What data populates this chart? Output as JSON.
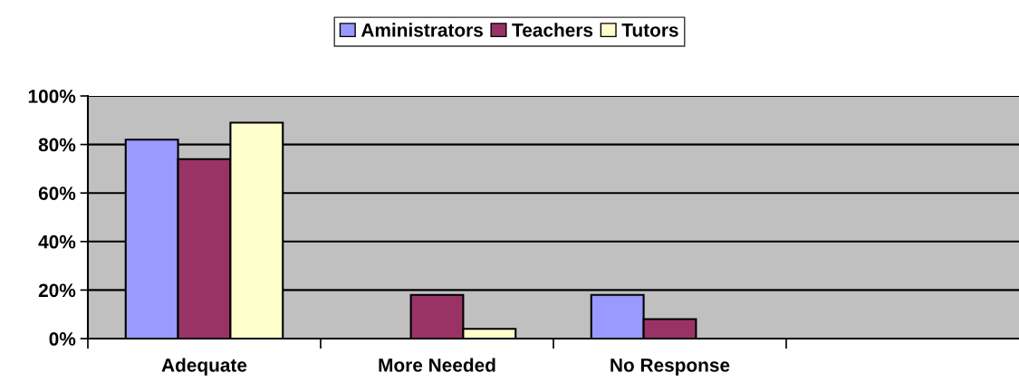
{
  "chart_data": {
    "type": "bar",
    "categories": [
      "Adequate",
      "More Needed",
      "No Response",
      null
    ],
    "series": [
      {
        "name": "Aministrators",
        "color": "#9999ff",
        "values": [
          82,
          null,
          18,
          null
        ]
      },
      {
        "name": "Teachers",
        "color": "#993366",
        "values": [
          74,
          18,
          8,
          null
        ]
      },
      {
        "name": "Tutors",
        "color": "#ffffcc",
        "values": [
          89,
          4,
          null,
          null
        ]
      }
    ],
    "ylim": [
      0,
      100
    ],
    "yticks": [
      {
        "value": 0,
        "label": "0%"
      },
      {
        "value": 20,
        "label": "20%"
      },
      {
        "value": 40,
        "label": "40%"
      },
      {
        "value": 60,
        "label": "60%"
      },
      {
        "value": 80,
        "label": "80%"
      },
      {
        "value": 100,
        "label": "100%"
      }
    ],
    "grid": "y",
    "legend": "top"
  }
}
